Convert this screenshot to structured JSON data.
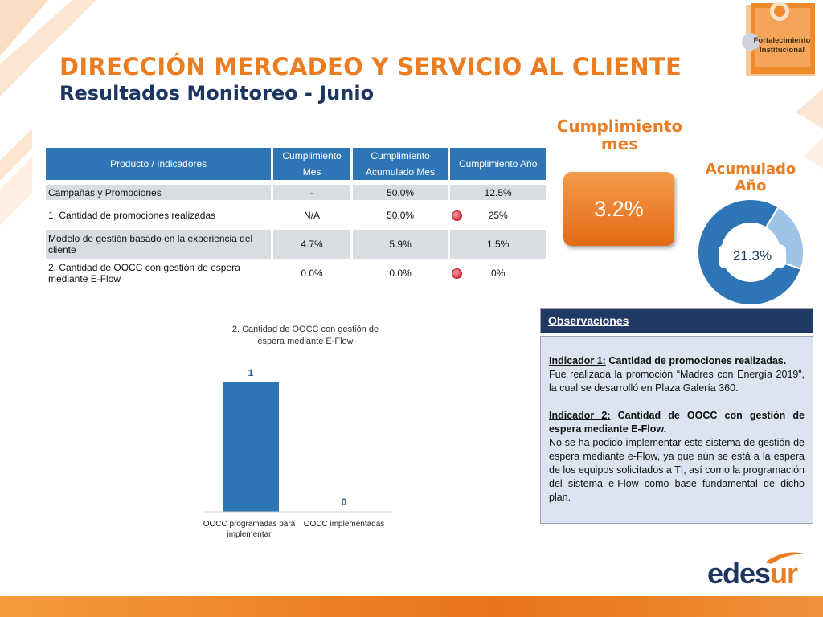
{
  "header": {
    "title": "DIRECCIÓN MERCADEO Y SERVICIO AL CLIENTE",
    "subtitle": "Resultados Monitoreo - Junio",
    "badge_line1": "Fortalecimiento",
    "badge_line2": "Institucional"
  },
  "table": {
    "headers": [
      "Producto / Indicadores",
      "Cumplimiento Mes",
      "Cumplimiento Acumulado Mes",
      "Cumplimiento  Año"
    ],
    "rows": [
      {
        "name": "Campañas y Promociones",
        "mes": "-",
        "acumulado": "50.0%",
        "anio": "12.5%"
      },
      {
        "name": "1. Cantidad de promociones realizadas",
        "mes": "N/A",
        "acumulado": "50.0%",
        "anio": "25%",
        "status": "red"
      },
      {
        "name": "Modelo de gestión basado en la experiencia del cliente",
        "mes": "4.7%",
        "acumulado": "5.9%",
        "anio": "1.5%"
      },
      {
        "name": "2. Cantidad de OOCC con gestión de espera mediante E-Flow",
        "mes": "0.0%",
        "acumulado": "0.0%",
        "anio": "0%",
        "status": "red"
      }
    ]
  },
  "kpis": {
    "mes_label": "Cumplimiento mes",
    "mes_value": "3.2%",
    "anio_label": "Acumulado Año",
    "anio_value": "21.3%",
    "anio_fraction": 0.213,
    "colors": {
      "main": "#2e75b6",
      "accent": "#9dc3e6"
    }
  },
  "observations": {
    "title": "Observaciones",
    "ind1_label": "Indicador 1:",
    "ind1_title": " Cantidad de promociones realizadas.",
    "ind1_text": "Fue realizada la promoción “Madres con Energía 2019”, la cual se desarrolló en Plaza Galería 360.",
    "ind2_label": "Indicador 2:",
    "ind2_title": " Cantidad de OOCC con gestión de espera mediante E-Flow.",
    "ind2_text": "No se ha podido implementar este sistema de gestión de espera mediante e-Flow, ya que aún se está a la espera de los equipos solicitados a TI, así como la programación del sistema e-Flow como base fundamental de dicho plan."
  },
  "chart_data": {
    "type": "bar",
    "title": "2. Cantidad de OOCC con gestión de espera mediante  E-Flow",
    "categories": [
      "OOCC programadas para implementar",
      "OOCC implementadas"
    ],
    "values": [
      1,
      0
    ],
    "ylim": [
      0,
      1
    ],
    "grid": false,
    "color": "#2e75b6"
  },
  "logo": {
    "part1": "edes",
    "part2": "ur"
  }
}
